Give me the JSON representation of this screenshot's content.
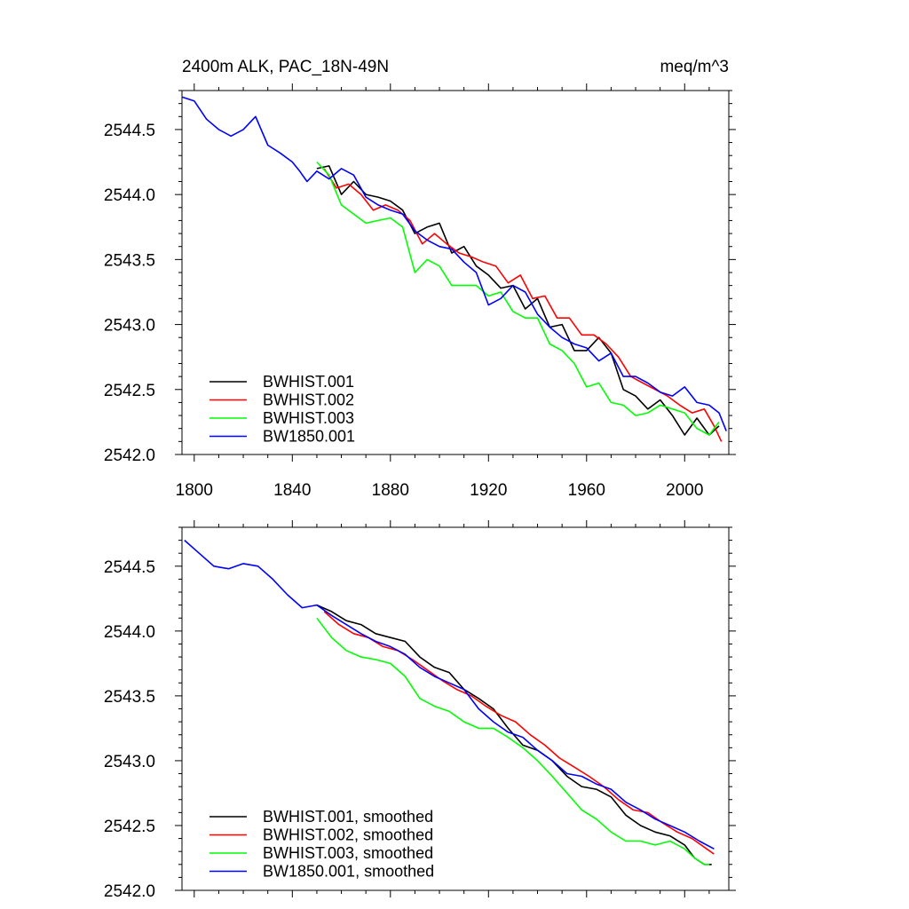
{
  "chart_data": [
    {
      "type": "line",
      "title": "2400m ALK, PAC_18N-49N",
      "units": "meq/m^3",
      "xlim": [
        1795,
        2018
      ],
      "ylim": [
        2542.0,
        2544.8
      ],
      "xticks": [
        1800,
        1840,
        1880,
        1920,
        1960,
        2000
      ],
      "xtick_labels": [
        "1800",
        "1840",
        "1880",
        "1920",
        "1960",
        "2000"
      ],
      "yticks": [
        2542.0,
        2542.5,
        2543.0,
        2543.5,
        2544.0,
        2544.5
      ],
      "ytick_labels": [
        "2542.0",
        "2542.5",
        "2543.0",
        "2543.5",
        "2544.0",
        "2544.5"
      ],
      "grid": false,
      "legend_position": "bottom-left",
      "series": [
        {
          "name": "BWHIST.001",
          "color": "#000000",
          "x": [
            1850,
            1855,
            1860,
            1865,
            1870,
            1875,
            1880,
            1885,
            1890,
            1895,
            1900,
            1905,
            1910,
            1915,
            1920,
            1925,
            1930,
            1935,
            1940,
            1945,
            1950,
            1955,
            1960,
            1965,
            1970,
            1975,
            1980,
            1985,
            1990,
            1995,
            2000,
            2005,
            2010,
            2014
          ],
          "y": [
            2544.2,
            2544.22,
            2544.0,
            2544.1,
            2544.0,
            2543.98,
            2543.95,
            2543.88,
            2543.7,
            2543.75,
            2543.78,
            2543.55,
            2543.6,
            2543.45,
            2543.38,
            2543.28,
            2543.3,
            2543.12,
            2543.2,
            2542.98,
            2543.0,
            2542.8,
            2542.8,
            2542.9,
            2542.78,
            2542.5,
            2542.45,
            2542.35,
            2542.42,
            2542.3,
            2542.15,
            2542.28,
            2542.15,
            2542.22
          ]
        },
        {
          "name": "BWHIST.002",
          "color": "#ff0000",
          "x": [
            1853,
            1858,
            1863,
            1868,
            1873,
            1878,
            1883,
            1888,
            1893,
            1898,
            1903,
            1908,
            1913,
            1918,
            1923,
            1928,
            1933,
            1938,
            1943,
            1948,
            1953,
            1958,
            1963,
            1968,
            1973,
            1978,
            1983,
            1988,
            1993,
            1998,
            2003,
            2008,
            2012,
            2015
          ],
          "y": [
            2544.2,
            2544.05,
            2544.08,
            2544.0,
            2543.88,
            2543.92,
            2543.88,
            2543.8,
            2543.62,
            2543.7,
            2543.62,
            2543.55,
            2543.52,
            2543.48,
            2543.45,
            2543.32,
            2543.38,
            2543.2,
            2543.22,
            2543.05,
            2543.05,
            2542.92,
            2542.92,
            2542.85,
            2542.75,
            2542.6,
            2542.55,
            2542.5,
            2542.45,
            2542.38,
            2542.32,
            2542.35,
            2542.22,
            2542.1
          ]
        },
        {
          "name": "BWHIST.003",
          "color": "#00ff00",
          "x": [
            1850,
            1855,
            1860,
            1865,
            1870,
            1875,
            1880,
            1885,
            1890,
            1895,
            1900,
            1905,
            1910,
            1915,
            1920,
            1925,
            1930,
            1935,
            1940,
            1945,
            1950,
            1955,
            1960,
            1965,
            1970,
            1975,
            1980,
            1985,
            1990,
            1995,
            2000,
            2005,
            2010,
            2014
          ],
          "y": [
            2544.25,
            2544.15,
            2543.92,
            2543.85,
            2543.78,
            2543.8,
            2543.82,
            2543.75,
            2543.4,
            2543.5,
            2543.45,
            2543.3,
            2543.3,
            2543.3,
            2543.22,
            2543.25,
            2543.1,
            2543.05,
            2543.05,
            2542.85,
            2542.8,
            2542.7,
            2542.52,
            2542.55,
            2542.4,
            2542.38,
            2542.3,
            2542.32,
            2542.38,
            2542.35,
            2542.32,
            2542.2,
            2542.15,
            2542.25
          ]
        },
        {
          "name": "BW1850.001",
          "color": "#0000ff",
          "x": [
            1795,
            1800,
            1805,
            1810,
            1815,
            1820,
            1825,
            1830,
            1835,
            1840,
            1843,
            1846,
            1850,
            1855,
            1860,
            1865,
            1870,
            1875,
            1880,
            1885,
            1890,
            1895,
            1900,
            1905,
            1910,
            1915,
            1920,
            1925,
            1930,
            1935,
            1940,
            1945,
            1950,
            1955,
            1960,
            1965,
            1970,
            1975,
            1980,
            1985,
            1990,
            1995,
            2000,
            2005,
            2010,
            2014,
            2017
          ],
          "y": [
            2544.75,
            2544.72,
            2544.58,
            2544.5,
            2544.45,
            2544.5,
            2544.6,
            2544.38,
            2544.32,
            2544.25,
            2544.18,
            2544.1,
            2544.18,
            2544.12,
            2544.2,
            2544.15,
            2543.98,
            2543.92,
            2543.88,
            2543.85,
            2543.72,
            2543.65,
            2543.6,
            2543.58,
            2543.48,
            2543.4,
            2543.15,
            2543.2,
            2543.3,
            2543.25,
            2543.08,
            2542.98,
            2542.9,
            2542.85,
            2542.82,
            2542.72,
            2542.78,
            2542.6,
            2542.6,
            2542.55,
            2542.48,
            2542.45,
            2542.52,
            2542.4,
            2542.38,
            2542.32,
            2542.18
          ]
        }
      ]
    },
    {
      "type": "line",
      "title": "",
      "xlim": [
        1795,
        2018
      ],
      "ylim": [
        2542.0,
        2544.8
      ],
      "xticks": [
        1800,
        1840,
        1880,
        1920,
        1960,
        2000
      ],
      "yticks": [
        2542.0,
        2542.5,
        2543.0,
        2543.5,
        2544.0,
        2544.5
      ],
      "ytick_labels": [
        "2542.0",
        "2542.5",
        "2543.0",
        "2543.5",
        "2544.0",
        "2544.5"
      ],
      "grid": false,
      "legend_position": "bottom-left",
      "series": [
        {
          "name": "BWHIST.001, smoothed",
          "color": "#000000",
          "x": [
            1850,
            1856,
            1862,
            1868,
            1874,
            1880,
            1886,
            1892,
            1898,
            1904,
            1910,
            1916,
            1922,
            1928,
            1934,
            1940,
            1946,
            1952,
            1958,
            1964,
            1970,
            1976,
            1982,
            1988,
            1994,
            2000,
            2004,
            2008,
            2011
          ],
          "y": [
            2544.2,
            2544.15,
            2544.08,
            2544.05,
            2543.98,
            2543.95,
            2543.92,
            2543.8,
            2543.72,
            2543.68,
            2543.55,
            2543.48,
            2543.4,
            2543.25,
            2543.12,
            2543.08,
            2543.0,
            2542.88,
            2542.8,
            2542.78,
            2542.72,
            2542.58,
            2542.5,
            2542.45,
            2542.42,
            2542.35,
            2542.25,
            2542.2,
            2542.2
          ]
        },
        {
          "name": "BWHIST.002, smoothed",
          "color": "#ff0000",
          "x": [
            1853,
            1859,
            1865,
            1871,
            1877,
            1883,
            1889,
            1895,
            1901,
            1907,
            1913,
            1919,
            1925,
            1931,
            1937,
            1943,
            1949,
            1955,
            1961,
            1967,
            1973,
            1979,
            1985,
            1991,
            1997,
            2003,
            2009,
            2012
          ],
          "y": [
            2544.15,
            2544.05,
            2543.98,
            2543.95,
            2543.88,
            2543.85,
            2543.78,
            2543.7,
            2543.62,
            2543.55,
            2543.5,
            2543.42,
            2543.35,
            2543.3,
            2543.2,
            2543.12,
            2543.02,
            2542.95,
            2542.88,
            2542.8,
            2542.7,
            2542.62,
            2542.6,
            2542.52,
            2542.45,
            2542.4,
            2542.32,
            2542.28
          ]
        },
        {
          "name": "BWHIST.003, smoothed",
          "color": "#00ff00",
          "x": [
            1850,
            1856,
            1862,
            1868,
            1874,
            1880,
            1886,
            1892,
            1898,
            1904,
            1910,
            1916,
            1922,
            1928,
            1934,
            1940,
            1946,
            1952,
            1958,
            1964,
            1970,
            1976,
            1982,
            1988,
            1994,
            2000,
            2004,
            2008,
            2010
          ],
          "y": [
            2544.1,
            2543.95,
            2543.85,
            2543.8,
            2543.78,
            2543.75,
            2543.65,
            2543.48,
            2543.42,
            2543.38,
            2543.3,
            2543.25,
            2543.25,
            2543.18,
            2543.1,
            2543.0,
            2542.88,
            2542.75,
            2542.62,
            2542.55,
            2542.45,
            2542.38,
            2542.38,
            2542.35,
            2542.38,
            2542.32,
            2542.25,
            2542.2,
            2542.2
          ]
        },
        {
          "name": "BW1850.001, smoothed",
          "color": "#0000ff",
          "x": [
            1796,
            1802,
            1808,
            1814,
            1820,
            1826,
            1832,
            1838,
            1844,
            1850,
            1856,
            1862,
            1868,
            1874,
            1880,
            1886,
            1892,
            1898,
            1904,
            1910,
            1916,
            1922,
            1928,
            1934,
            1940,
            1946,
            1952,
            1958,
            1964,
            1970,
            1976,
            1982,
            1988,
            1994,
            2000,
            2006,
            2012
          ],
          "y": [
            2544.7,
            2544.6,
            2544.5,
            2544.48,
            2544.52,
            2544.5,
            2544.4,
            2544.28,
            2544.18,
            2544.2,
            2544.12,
            2544.05,
            2543.98,
            2543.92,
            2543.88,
            2543.82,
            2543.72,
            2543.65,
            2543.6,
            2543.55,
            2543.4,
            2543.3,
            2543.22,
            2543.18,
            2543.08,
            2543.0,
            2542.9,
            2542.88,
            2542.82,
            2542.78,
            2542.68,
            2542.62,
            2542.55,
            2542.5,
            2542.45,
            2542.38,
            2542.32
          ]
        }
      ]
    }
  ]
}
